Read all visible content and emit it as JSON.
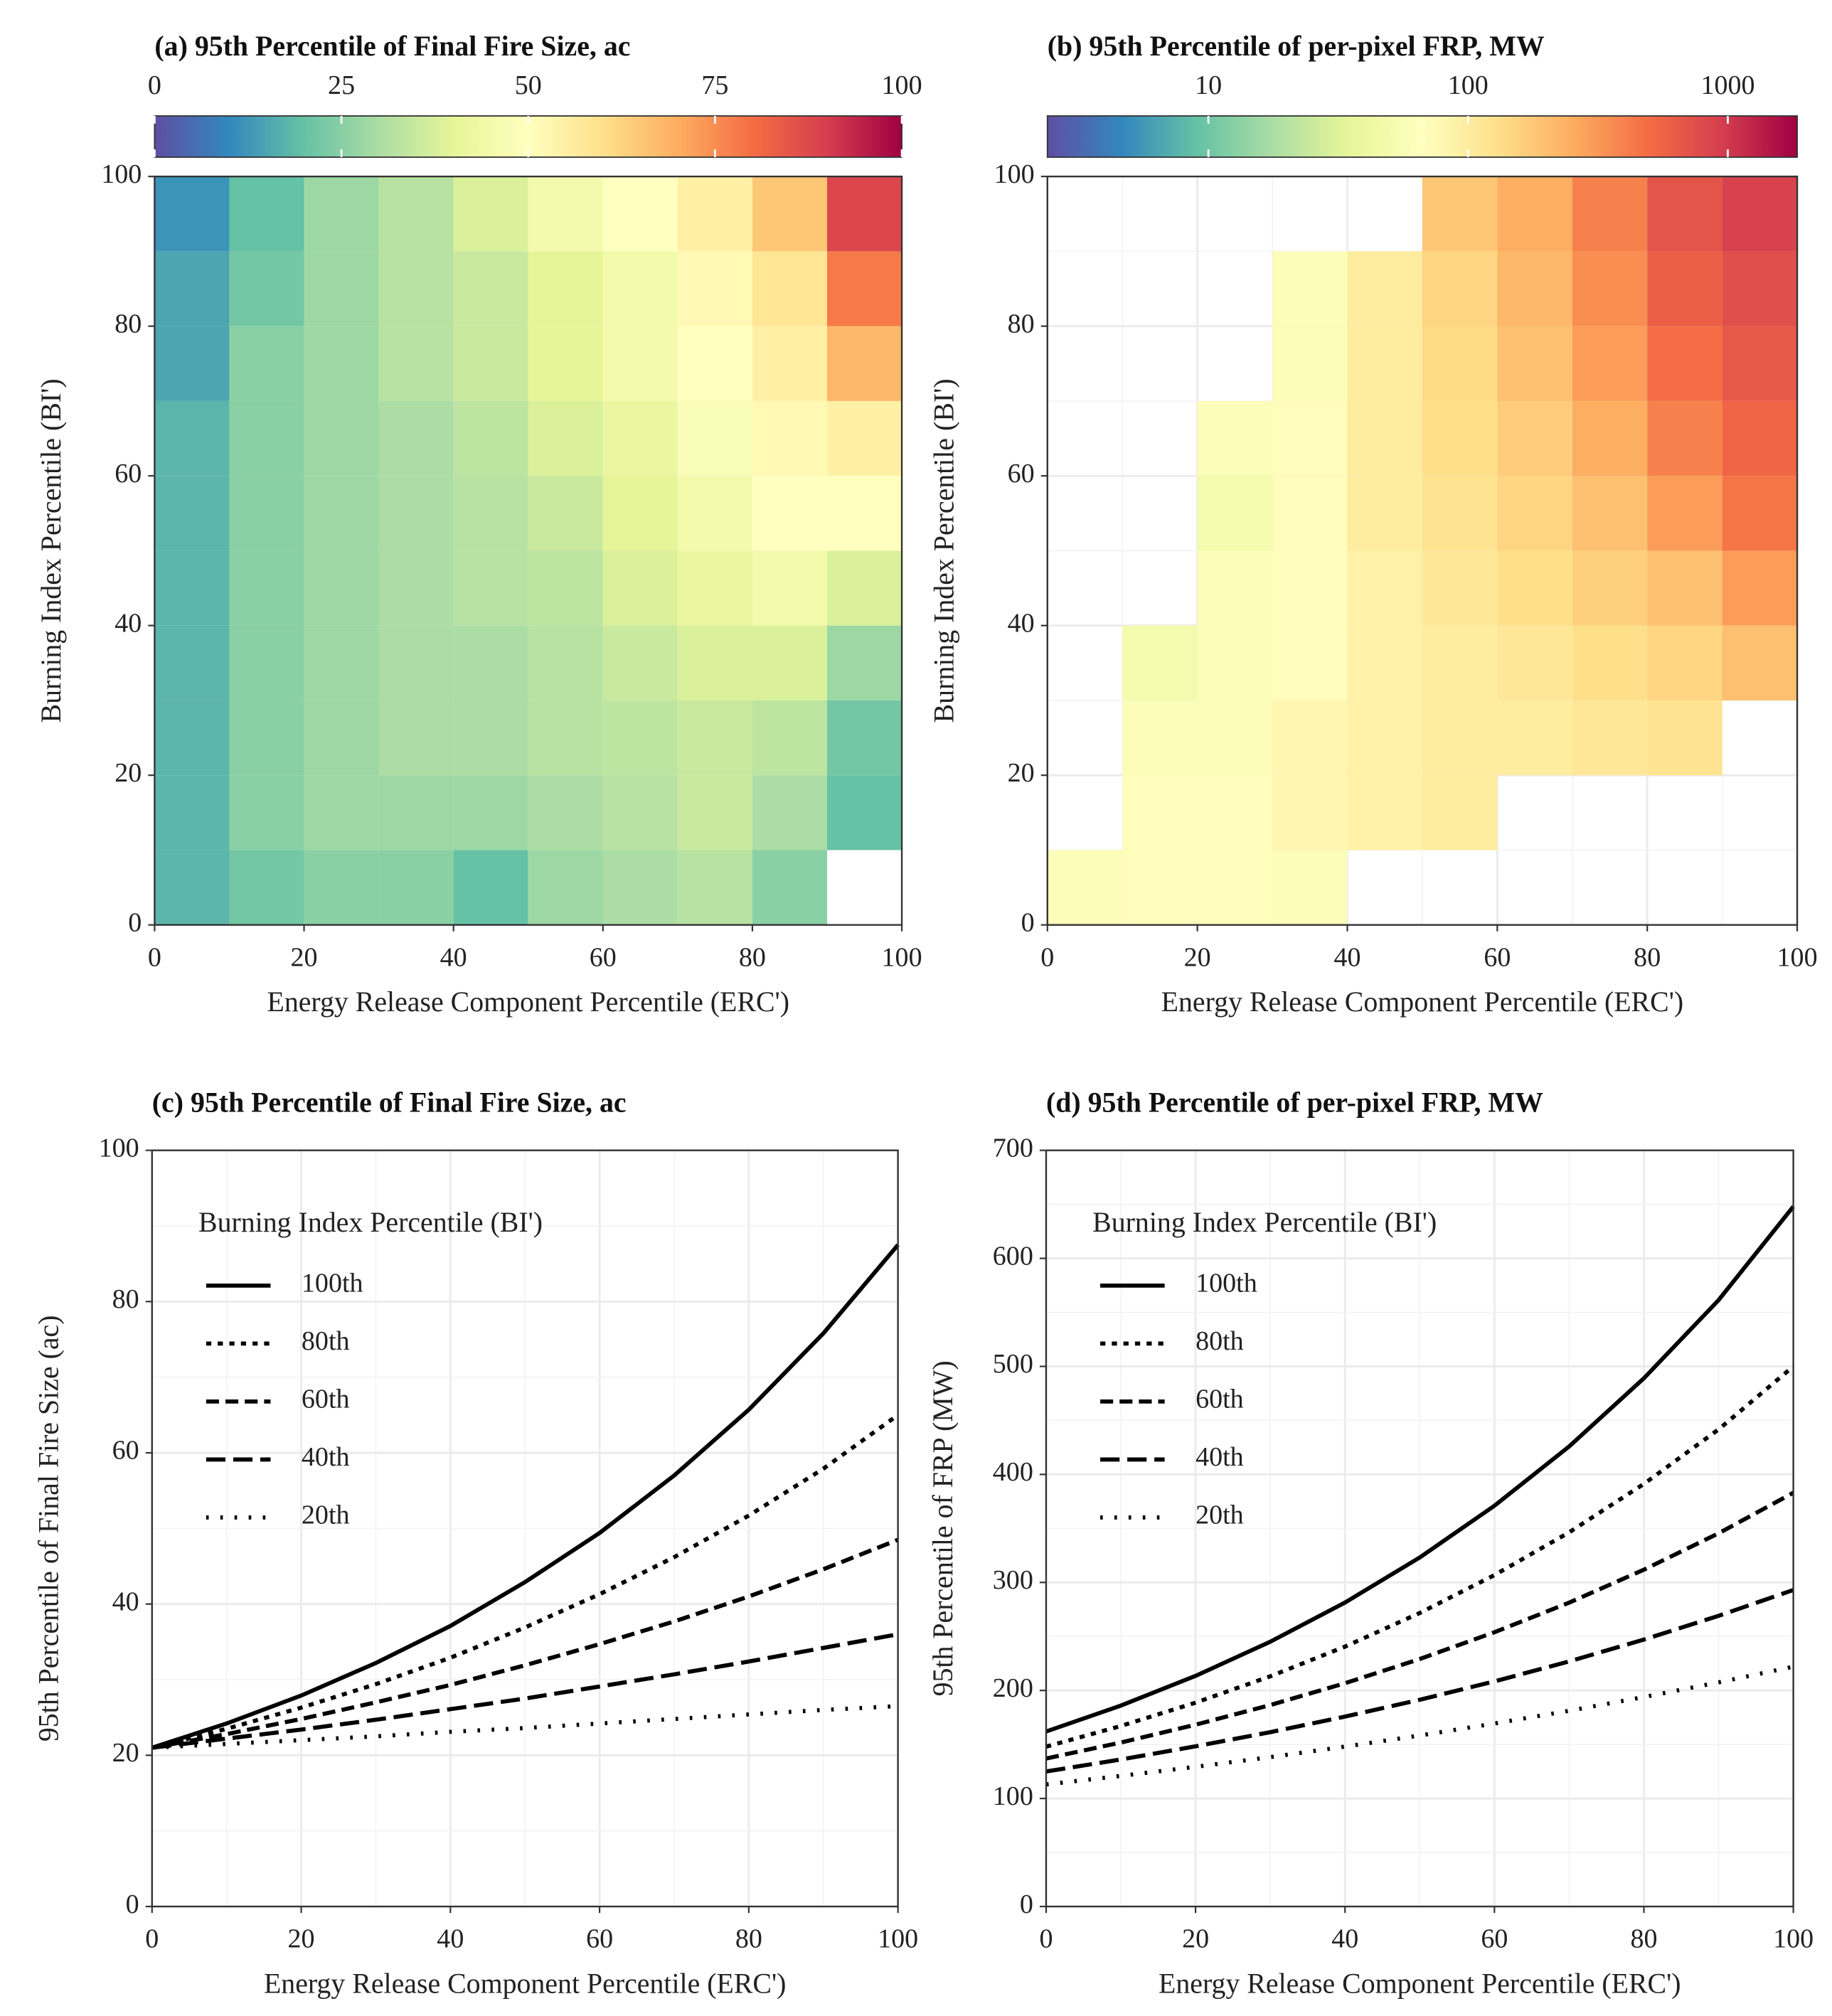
{
  "chart_data": [
    {
      "type": "heatmap",
      "title": "(a) 95th Percentile of Final Fire Size, ac",
      "x_label": "Energy Release Component Percentile (ERC')",
      "y_label": "Burning Index Percentile (BI')",
      "xlim": [
        0,
        100
      ],
      "ylim": [
        0,
        100
      ],
      "xticks": [
        0,
        20,
        40,
        60,
        80,
        100
      ],
      "yticks": [
        0,
        20,
        40,
        60,
        80,
        100
      ],
      "xbins": [
        0,
        10,
        20,
        30,
        40,
        50,
        60,
        70,
        80,
        90,
        100
      ],
      "ybins": [
        0,
        10,
        20,
        30,
        40,
        50,
        60,
        70,
        80,
        90,
        100
      ],
      "z": [
        [
          18,
          22,
          25,
          25,
          20,
          28,
          30,
          32,
          25,
          null
        ],
        [
          18,
          25,
          28,
          28,
          28,
          30,
          32,
          35,
          30,
          20
        ],
        [
          18,
          25,
          28,
          30,
          30,
          32,
          33,
          35,
          33,
          22
        ],
        [
          18,
          25,
          28,
          30,
          30,
          32,
          35,
          38,
          38,
          28
        ],
        [
          18,
          25,
          28,
          30,
          32,
          33,
          38,
          42,
          45,
          38
        ],
        [
          18,
          25,
          28,
          30,
          32,
          35,
          40,
          45,
          50,
          50
        ],
        [
          18,
          25,
          28,
          30,
          33,
          38,
          42,
          48,
          52,
          55
        ],
        [
          15,
          25,
          28,
          32,
          35,
          40,
          45,
          50,
          55,
          68
        ],
        [
          15,
          22,
          28,
          32,
          35,
          40,
          45,
          52,
          58,
          78
        ],
        [
          12,
          20,
          28,
          32,
          38,
          45,
          50,
          55,
          65,
          88
        ]
      ],
      "colorbar": {
        "clim": [
          0,
          100
        ],
        "ticks": [
          0,
          25,
          50,
          75,
          100
        ],
        "log": false
      },
      "colorscale": [
        "#5e4fa2",
        "#3288bd",
        "#66c2a5",
        "#abdda4",
        "#e6f598",
        "#ffffbf",
        "#fee08b",
        "#fdae61",
        "#f46d43",
        "#d53e4f",
        "#9e0142"
      ],
      "grid": false
    },
    {
      "type": "heatmap",
      "title": "(b) 95th Percentile of per-pixel FRP, MW",
      "x_label": "Energy Release Component Percentile (ERC')",
      "y_label": "Burning Index Percentile (BI')",
      "xlim": [
        0,
        100
      ],
      "ylim": [
        0,
        100
      ],
      "xticks": [
        0,
        20,
        40,
        60,
        80,
        100
      ],
      "yticks": [
        0,
        20,
        40,
        60,
        80,
        100
      ],
      "xbins": [
        0,
        10,
        20,
        30,
        40,
        50,
        60,
        70,
        80,
        90,
        100
      ],
      "ybins": [
        0,
        10,
        20,
        30,
        40,
        50,
        60,
        70,
        80,
        90,
        100
      ],
      "z": [
        [
          60,
          70,
          70,
          60,
          null,
          null,
          null,
          null,
          null,
          null
        ],
        [
          null,
          70,
          70,
          80,
          90,
          100,
          null,
          null,
          null,
          null
        ],
        [
          null,
          60,
          60,
          80,
          90,
          100,
          100,
          110,
          120,
          null
        ],
        [
          null,
          50,
          60,
          70,
          90,
          100,
          110,
          130,
          150,
          200
        ],
        [
          null,
          null,
          60,
          70,
          90,
          110,
          130,
          160,
          200,
          300
        ],
        [
          null,
          null,
          50,
          70,
          100,
          120,
          150,
          200,
          300,
          450
        ],
        [
          null,
          null,
          60,
          70,
          100,
          130,
          170,
          250,
          400,
          550
        ],
        [
          null,
          null,
          null,
          60,
          100,
          140,
          200,
          300,
          500,
          650
        ],
        [
          null,
          null,
          null,
          60,
          100,
          150,
          220,
          350,
          600,
          750
        ],
        [
          null,
          null,
          null,
          null,
          null,
          180,
          250,
          400,
          700,
          900
        ]
      ],
      "colorbar": {
        "clim": [
          2.4,
          1850
        ],
        "ticks": [
          10,
          100,
          1000
        ],
        "log": true
      },
      "colorscale": [
        "#5e4fa2",
        "#3288bd",
        "#66c2a5",
        "#abdda4",
        "#e6f598",
        "#ffffbf",
        "#fee08b",
        "#fdae61",
        "#f46d43",
        "#d53e4f",
        "#9e0142"
      ],
      "grid": true
    },
    {
      "type": "line",
      "title": "(c) 95th Percentile of Final Fire Size, ac",
      "x_label": "Energy Release Component Percentile (ERC')",
      "y_label": "95th Percentile of Final Fire Size (ac)",
      "xlim": [
        0,
        100
      ],
      "ylim": [
        0,
        100
      ],
      "xticks": [
        0,
        20,
        40,
        60,
        80,
        100
      ],
      "yticks": [
        0,
        20,
        40,
        60,
        80,
        100
      ],
      "grid": true,
      "legend_title": "Burning Index Percentile (BI')",
      "legend": "upper left",
      "x": [
        0,
        10,
        20,
        30,
        40,
        50,
        60,
        70,
        80,
        90,
        100
      ],
      "series": [
        {
          "name": "100th",
          "color": "#000000",
          "linestyle": "solid",
          "values": [
            21,
            24.2,
            27.9,
            32.2,
            37.1,
            42.9,
            49.4,
            57.0,
            65.7,
            75.8,
            87.5
          ]
        },
        {
          "name": "80th",
          "color": "#000000",
          "linestyle": "dotted",
          "values": [
            21,
            23.5,
            26.3,
            29.4,
            32.9,
            36.9,
            41.3,
            46.2,
            51.7,
            57.9,
            65
          ]
        },
        {
          "name": "60th",
          "color": "#000000",
          "linestyle": "dashed",
          "values": [
            21,
            22.8,
            24.8,
            27.0,
            29.3,
            31.9,
            34.7,
            37.7,
            41.0,
            44.6,
            48.5
          ]
        },
        {
          "name": "40th",
          "color": "#000000",
          "linestyle": "longdash",
          "values": [
            21,
            22.2,
            23.4,
            24.7,
            26.1,
            27.5,
            29.1,
            30.7,
            32.4,
            34.2,
            36
          ]
        },
        {
          "name": "20th",
          "color": "#000000",
          "linestyle": "sparse",
          "values": [
            21,
            21.5,
            22.0,
            22.5,
            23.1,
            23.6,
            24.2,
            24.8,
            25.4,
            26.0,
            26.5
          ]
        }
      ]
    },
    {
      "type": "line",
      "title": "(d) 95th Percentile of per-pixel FRP, MW",
      "x_label": "Energy Release Component Percentile (ERC')",
      "y_label": "95th Percentile of FRP (MW)",
      "xlim": [
        0,
        100
      ],
      "ylim": [
        0,
        700
      ],
      "xticks": [
        0,
        20,
        40,
        60,
        80,
        100
      ],
      "yticks": [
        0,
        100,
        200,
        300,
        400,
        500,
        600,
        700
      ],
      "grid": true,
      "legend_title": "Burning Index Percentile (BI')",
      "legend": "upper left",
      "x": [
        0,
        10,
        20,
        30,
        40,
        50,
        60,
        70,
        80,
        90,
        100
      ],
      "series": [
        {
          "name": "100th",
          "color": "#000000",
          "linestyle": "solid",
          "values": [
            162,
            186.0,
            213.5,
            245.1,
            281.4,
            323.1,
            371.0,
            425.9,
            489.0,
            561.4,
            648
          ]
        },
        {
          "name": "80th",
          "color": "#000000",
          "linestyle": "dotted",
          "values": [
            148,
            167.1,
            188.7,
            213.1,
            240.6,
            271.7,
            306.8,
            346.4,
            391.2,
            441.7,
            500
          ]
        },
        {
          "name": "60th",
          "color": "#000000",
          "linestyle": "dashed",
          "values": [
            137,
            151.8,
            168.3,
            186.5,
            206.7,
            229.1,
            253.9,
            281.3,
            311.8,
            345.5,
            383
          ]
        },
        {
          "name": "40th",
          "color": "#000000",
          "linestyle": "longdash",
          "values": [
            125,
            136.1,
            148.3,
            161.4,
            175.8,
            191.4,
            208.4,
            226.9,
            247.1,
            269.1,
            293
          ]
        },
        {
          "name": "20th",
          "color": "#000000",
          "linestyle": "sparse",
          "values": [
            113,
            120.9,
            129.3,
            138.3,
            148.0,
            158.3,
            169.4,
            181.2,
            193.9,
            207.5,
            222
          ]
        }
      ]
    }
  ]
}
